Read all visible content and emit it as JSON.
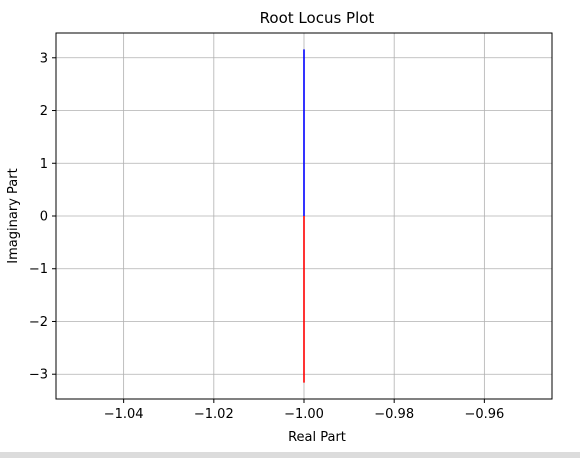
{
  "chart_data": {
    "type": "line",
    "title": "Root Locus Plot",
    "xlabel": "Real Part",
    "ylabel": "Imaginary Part",
    "xlim": [
      -1.055,
      1.055
    ],
    "xlim_note_unused": null,
    "x_range": [
      -1.055,
      -0.945
    ],
    "ylim": [
      -3.47,
      3.47
    ],
    "grid": true,
    "x_ticks": [
      -1.04,
      -1.02,
      -1.0,
      -0.98,
      -0.96
    ],
    "x_tick_labels": [
      "−1.04",
      "−1.02",
      "−1.00",
      "−0.98",
      "−0.96"
    ],
    "y_ticks": [
      -3,
      -2,
      -1,
      0,
      1,
      2,
      3
    ],
    "y_tick_labels": [
      "−3",
      "−2",
      "−1",
      "0",
      "1",
      "2",
      "3"
    ],
    "series": [
      {
        "color": "#0000ff",
        "x": [
          -1.0,
          -1.0
        ],
        "y": [
          0.0,
          3.16
        ]
      },
      {
        "color": "#ff0000",
        "x": [
          -1.0,
          -1.0
        ],
        "y": [
          0.0,
          -3.16
        ]
      }
    ]
  }
}
